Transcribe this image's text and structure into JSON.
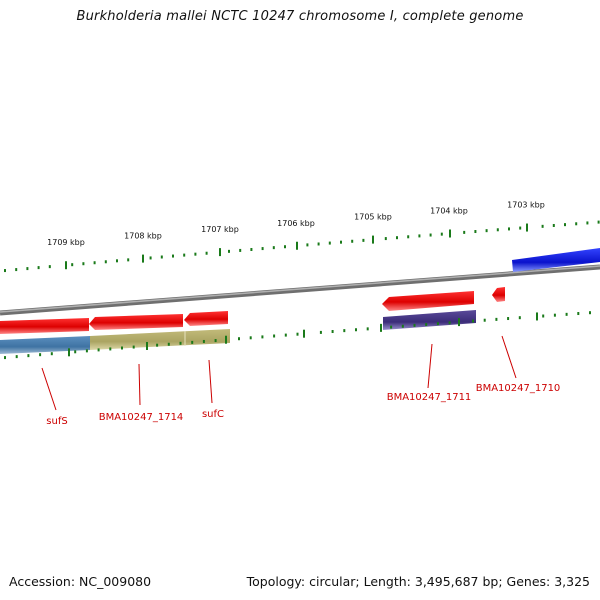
{
  "title": "Burkholderia mallei NCTC 10247 chromosome I, complete genome",
  "footer": {
    "accession": "Accession: NC_009080",
    "summary": "Topology: circular; Length: 3,495,687 bp; Genes: 3,325"
  },
  "ticks": [
    {
      "label": "1709 kbp"
    },
    {
      "label": "1708 kbp"
    },
    {
      "label": "1707 kbp"
    },
    {
      "label": "1706 kbp"
    },
    {
      "label": "1705 kbp"
    },
    {
      "label": "1704 kbp"
    },
    {
      "label": "1703 kbp"
    }
  ],
  "genes": [
    {
      "label": "sufS",
      "color": "#cc0000"
    },
    {
      "label": "BMA10247_1714",
      "color": "#cc0000"
    },
    {
      "label": "sufC",
      "color": "#cc0000"
    },
    {
      "label": "BMA10247_1711",
      "color": "#cc0000"
    },
    {
      "label": "BMA10247_1710",
      "color": "#cc0000"
    }
  ],
  "colors": {
    "forward_cds": "#ee1111",
    "reverse_cds_blue": "#2233dd",
    "feature_steelblue": "#4a7fb0",
    "feature_khaki": "#b5ae6a",
    "feature_purple": "#4b3a8a",
    "backbone": "#888888",
    "tick": "#1a7a1a"
  }
}
